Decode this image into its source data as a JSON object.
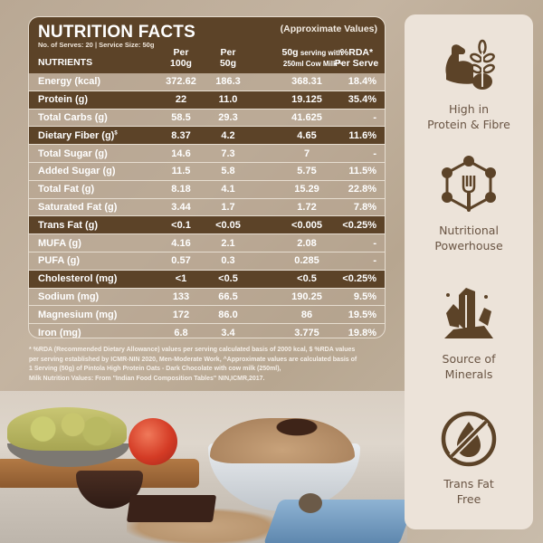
{
  "nutrition": {
    "title": "NUTRITION FACTS",
    "approx_note": "(Approximate Values)",
    "serves_info": "No. of Serves: 20 | Service Size: 50g",
    "columns": {
      "nutrients": "NUTRIENTS",
      "per100_line1": "Per",
      "per100_line2": "100g",
      "per50_line1": "Per",
      "per50_line2": "50g",
      "milk_line1_bold": "50g",
      "milk_line1_rest": " serving with",
      "milk_line2": "250ml Cow Milk^",
      "rda_line1": "%RDA*",
      "rda_line2": "Per Serve"
    },
    "rows": [
      {
        "name": "Energy (kcal)",
        "per100": "372.62",
        "per50": "186.3",
        "with_milk": "368.31",
        "rda": "18.4%",
        "dark": false
      },
      {
        "name": "Protein (g)",
        "per100": "22",
        "per50": "11.0",
        "with_milk": "19.125",
        "rda": "35.4%",
        "dark": true
      },
      {
        "name": "Total Carbs (g)",
        "per100": "58.5",
        "per50": "29.3",
        "with_milk": "41.625",
        "rda": "-",
        "dark": false
      },
      {
        "name": "Dietary Fiber (g)",
        "sup": "$",
        "per100": "8.37",
        "per50": "4.2",
        "with_milk": "4.65",
        "rda": "11.6%",
        "dark": true
      },
      {
        "name": "Total Sugar (g)",
        "per100": "14.6",
        "per50": "7.3",
        "with_milk": "7",
        "rda": "-",
        "dark": false
      },
      {
        "name": "Added Sugar (g)",
        "per100": "11.5",
        "per50": "5.8",
        "with_milk": "5.75",
        "rda": "11.5%",
        "dark": false
      },
      {
        "name": "Total Fat (g)",
        "per100": "8.18",
        "per50": "4.1",
        "with_milk": "15.29",
        "rda": "22.8%",
        "dark": false
      },
      {
        "name": "Saturated Fat (g)",
        "per100": "3.44",
        "per50": "1.7",
        "with_milk": "1.72",
        "rda": "7.8%",
        "dark": false
      },
      {
        "name": "Trans Fat (g)",
        "per100": "<0.1",
        "per50": "<0.05",
        "with_milk": "<0.005",
        "rda": "<0.25%",
        "dark": true
      },
      {
        "name": "MUFA (g)",
        "per100": "4.16",
        "per50": "2.1",
        "with_milk": "2.08",
        "rda": "-",
        "dark": false
      },
      {
        "name": "PUFA (g)",
        "per100": "0.57",
        "per50": "0.3",
        "with_milk": "0.285",
        "rda": "-",
        "dark": false
      },
      {
        "name": "Cholesterol (mg)",
        "per100": "<1",
        "per50": "<0.5",
        "with_milk": "<0.5",
        "rda": "<0.25%",
        "dark": true
      },
      {
        "name": "Sodium (mg)",
        "per100": "133",
        "per50": "66.5",
        "with_milk": "190.25",
        "rda": "9.5%",
        "dark": false
      },
      {
        "name": "Magnesium (mg)",
        "per100": "172",
        "per50": "86.0",
        "with_milk": "86",
        "rda": "19.5%",
        "dark": false
      },
      {
        "name": "Iron (mg)",
        "per100": "6.8",
        "per50": "3.4",
        "with_milk": "3.775",
        "rda": "19.8%",
        "dark": false
      }
    ],
    "footnote_lines": [
      "* %RDA (Recommended Dietary Allowance) values per serving calculated basis of 2000 kcal, $ %RDA values",
      "per serving established by ICMR-NIN 2020, Men-Moderate Work, ^Approximate values are calculated basis of",
      "1 Serving (50g) of Pintola High Protein Oats - Dark Chocolate with cow milk (250ml),",
      "Milk Nutrition Values: From \"Indian Food Composition Tables\" NIN,ICMR,2017."
    ]
  },
  "features": [
    {
      "icon": "muscle-wheat-icon",
      "line1": "High in",
      "line2": "Protein & Fibre"
    },
    {
      "icon": "molecule-fork-icon",
      "line1": "Nutritional",
      "line2": "Powerhouse"
    },
    {
      "icon": "crystal-minerals-icon",
      "line1": "Source of",
      "line2": "Minerals"
    },
    {
      "icon": "no-fat-drop-icon",
      "line1": "Trans Fat",
      "line2": "Free"
    }
  ],
  "colors": {
    "table_dark": "#5c4328",
    "side_bg": "#ece3d9",
    "icon_brown": "#5c4328",
    "feature_text": "#6a5544"
  }
}
